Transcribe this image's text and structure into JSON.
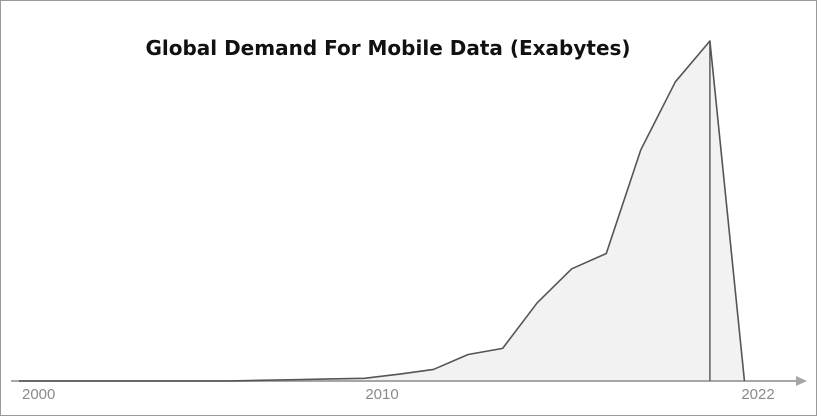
{
  "chart_data": {
    "type": "area",
    "title": "Global Demand For Mobile Data (Exabytes)",
    "xlabel": "",
    "ylabel": "",
    "x_tick_labels": [
      "2000",
      "2010",
      "2022"
    ],
    "xlim": [
      2000,
      2022
    ],
    "ylim": [
      0,
      100
    ],
    "grid": false,
    "legend": "none",
    "colors": {
      "line": "#555555",
      "fill": "#f2f2f2",
      "axis": "#a6a6a6",
      "title": "#111111",
      "tick_text": "#8a8a8a"
    },
    "x": [
      2000,
      2001,
      2002,
      2003,
      2004,
      2005,
      2006,
      2007,
      2008,
      2009,
      2010,
      2011,
      2012,
      2013,
      2014,
      2015,
      2016,
      2017,
      2018,
      2019,
      2020,
      2021
    ],
    "values": [
      0,
      0,
      0,
      0,
      0,
      0,
      0,
      0.2,
      0.4,
      0.6,
      0.8,
      2,
      3.4,
      7.8,
      9.6,
      23,
      33,
      37.5,
      68,
      88,
      100,
      0
    ]
  }
}
